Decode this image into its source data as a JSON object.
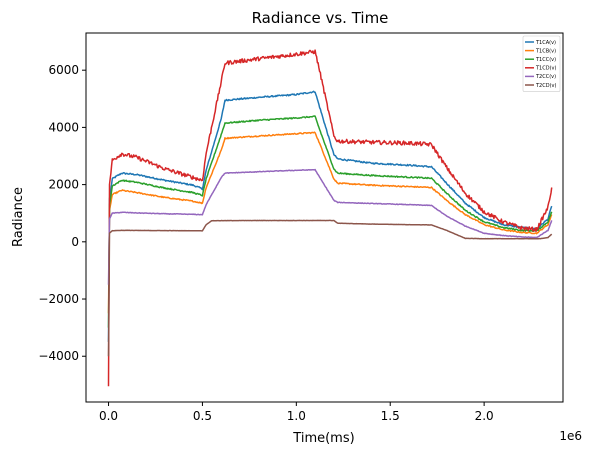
{
  "chart_data": {
    "type": "line",
    "title": "Radiance vs. Time",
    "xlabel": "Time(ms)",
    "ylabel": "Radiance",
    "x_offset_text": "1e6",
    "xlim": [
      -0.12,
      2.42
    ],
    "ylim": [
      -5600,
      7300
    ],
    "x_ticks": [
      0.0,
      0.5,
      1.0,
      1.5,
      2.0
    ],
    "x_tick_labels": [
      "0.0",
      "0.5",
      "1.0",
      "1.5",
      "2.0"
    ],
    "y_ticks": [
      -4000,
      -2000,
      0,
      2000,
      4000,
      6000
    ],
    "y_tick_labels": [
      "−4000",
      "−2000",
      "0",
      "2000",
      "4000",
      "6000"
    ],
    "grid": false,
    "legend_position": "top-right",
    "series": [
      {
        "name": "T1CA(v)",
        "color": "#1f77b4",
        "noise": 25,
        "points": [
          [
            0.0,
            -3500
          ],
          [
            0.005,
            1500
          ],
          [
            0.02,
            2200
          ],
          [
            0.07,
            2400
          ],
          [
            0.15,
            2350
          ],
          [
            0.3,
            2150
          ],
          [
            0.45,
            1980
          ],
          [
            0.5,
            1850
          ],
          [
            0.52,
            2500
          ],
          [
            0.6,
            4300
          ],
          [
            0.62,
            4950
          ],
          [
            0.8,
            5050
          ],
          [
            1.0,
            5150
          ],
          [
            1.1,
            5250
          ],
          [
            1.12,
            4800
          ],
          [
            1.2,
            3050
          ],
          [
            1.22,
            2900
          ],
          [
            1.4,
            2750
          ],
          [
            1.6,
            2680
          ],
          [
            1.72,
            2620
          ],
          [
            1.8,
            2050
          ],
          [
            1.9,
            1350
          ],
          [
            2.0,
            850
          ],
          [
            2.1,
            600
          ],
          [
            2.2,
            500
          ],
          [
            2.28,
            450
          ],
          [
            2.34,
            800
          ],
          [
            2.36,
            1250
          ]
        ]
      },
      {
        "name": "T1CB(v)",
        "color": "#ff7f0e",
        "noise": 20,
        "points": [
          [
            0.0,
            -2500
          ],
          [
            0.005,
            1100
          ],
          [
            0.02,
            1650
          ],
          [
            0.07,
            1800
          ],
          [
            0.15,
            1720
          ],
          [
            0.3,
            1550
          ],
          [
            0.45,
            1420
          ],
          [
            0.5,
            1350
          ],
          [
            0.52,
            1900
          ],
          [
            0.6,
            3200
          ],
          [
            0.62,
            3620
          ],
          [
            0.8,
            3700
          ],
          [
            1.0,
            3780
          ],
          [
            1.1,
            3820
          ],
          [
            1.12,
            3500
          ],
          [
            1.2,
            2200
          ],
          [
            1.22,
            2050
          ],
          [
            1.4,
            1980
          ],
          [
            1.6,
            1930
          ],
          [
            1.72,
            1900
          ],
          [
            1.8,
            1450
          ],
          [
            1.9,
            950
          ],
          [
            2.0,
            600
          ],
          [
            2.1,
            420
          ],
          [
            2.2,
            330
          ],
          [
            2.28,
            300
          ],
          [
            2.34,
            600
          ],
          [
            2.36,
            950
          ]
        ]
      },
      {
        "name": "T1CC(v)",
        "color": "#2ca02c",
        "noise": 22,
        "points": [
          [
            0.0,
            -3000
          ],
          [
            0.005,
            1300
          ],
          [
            0.02,
            1950
          ],
          [
            0.07,
            2150
          ],
          [
            0.15,
            2080
          ],
          [
            0.3,
            1880
          ],
          [
            0.45,
            1720
          ],
          [
            0.5,
            1620
          ],
          [
            0.52,
            2200
          ],
          [
            0.6,
            3750
          ],
          [
            0.62,
            4150
          ],
          [
            0.8,
            4250
          ],
          [
            1.0,
            4330
          ],
          [
            1.1,
            4380
          ],
          [
            1.12,
            4000
          ],
          [
            1.2,
            2550
          ],
          [
            1.22,
            2400
          ],
          [
            1.4,
            2320
          ],
          [
            1.6,
            2260
          ],
          [
            1.72,
            2220
          ],
          [
            1.8,
            1700
          ],
          [
            1.9,
            1100
          ],
          [
            2.0,
            700
          ],
          [
            2.1,
            500
          ],
          [
            2.2,
            400
          ],
          [
            2.28,
            380
          ],
          [
            2.34,
            700
          ],
          [
            2.36,
            1050
          ]
        ]
      },
      {
        "name": "T1CD(v)",
        "color": "#d62728",
        "noise": 70,
        "points": [
          [
            0.0,
            -5050
          ],
          [
            0.005,
            2000
          ],
          [
            0.02,
            2850
          ],
          [
            0.07,
            3080
          ],
          [
            0.15,
            2950
          ],
          [
            0.3,
            2550
          ],
          [
            0.45,
            2250
          ],
          [
            0.5,
            2150
          ],
          [
            0.52,
            3100
          ],
          [
            0.6,
            5600
          ],
          [
            0.62,
            6250
          ],
          [
            0.8,
            6400
          ],
          [
            1.0,
            6560
          ],
          [
            1.1,
            6650
          ],
          [
            1.12,
            6100
          ],
          [
            1.2,
            3700
          ],
          [
            1.22,
            3520
          ],
          [
            1.4,
            3480
          ],
          [
            1.6,
            3450
          ],
          [
            1.72,
            3400
          ],
          [
            1.8,
            2600
          ],
          [
            1.9,
            1700
          ],
          [
            2.0,
            1050
          ],
          [
            2.1,
            700
          ],
          [
            2.2,
            480
          ],
          [
            2.28,
            430
          ],
          [
            2.34,
            1200
          ],
          [
            2.36,
            1900
          ]
        ]
      },
      {
        "name": "T2CC(v)",
        "color": "#9467bd",
        "noise": 10,
        "points": [
          [
            0.0,
            -1500
          ],
          [
            0.005,
            800
          ],
          [
            0.02,
            1000
          ],
          [
            0.07,
            1030
          ],
          [
            0.15,
            1010
          ],
          [
            0.3,
            980
          ],
          [
            0.45,
            960
          ],
          [
            0.5,
            950
          ],
          [
            0.52,
            1300
          ],
          [
            0.6,
            2250
          ],
          [
            0.62,
            2400
          ],
          [
            0.8,
            2450
          ],
          [
            1.0,
            2500
          ],
          [
            1.1,
            2520
          ],
          [
            1.12,
            2300
          ],
          [
            1.2,
            1450
          ],
          [
            1.22,
            1380
          ],
          [
            1.4,
            1340
          ],
          [
            1.6,
            1300
          ],
          [
            1.72,
            1270
          ],
          [
            1.8,
            900
          ],
          [
            1.9,
            550
          ],
          [
            2.0,
            300
          ],
          [
            2.1,
            220
          ],
          [
            2.2,
            170
          ],
          [
            2.28,
            150
          ],
          [
            2.34,
            400
          ],
          [
            2.36,
            750
          ]
        ]
      },
      {
        "name": "T2CD(v)",
        "color": "#8c564b",
        "noise": 3,
        "points": [
          [
            0.0,
            -4000
          ],
          [
            0.005,
            300
          ],
          [
            0.02,
            390
          ],
          [
            0.07,
            400
          ],
          [
            0.2,
            395
          ],
          [
            0.4,
            390
          ],
          [
            0.5,
            385
          ],
          [
            0.52,
            600
          ],
          [
            0.55,
            740
          ],
          [
            0.8,
            745
          ],
          [
            1.0,
            745
          ],
          [
            1.1,
            745
          ],
          [
            1.2,
            745
          ],
          [
            1.22,
            650
          ],
          [
            1.4,
            620
          ],
          [
            1.6,
            600
          ],
          [
            1.72,
            590
          ],
          [
            1.8,
            400
          ],
          [
            1.9,
            120
          ],
          [
            2.0,
            110
          ],
          [
            2.1,
            110
          ],
          [
            2.2,
            110
          ],
          [
            2.3,
            110
          ],
          [
            2.34,
            150
          ],
          [
            2.36,
            270
          ]
        ]
      }
    ]
  }
}
